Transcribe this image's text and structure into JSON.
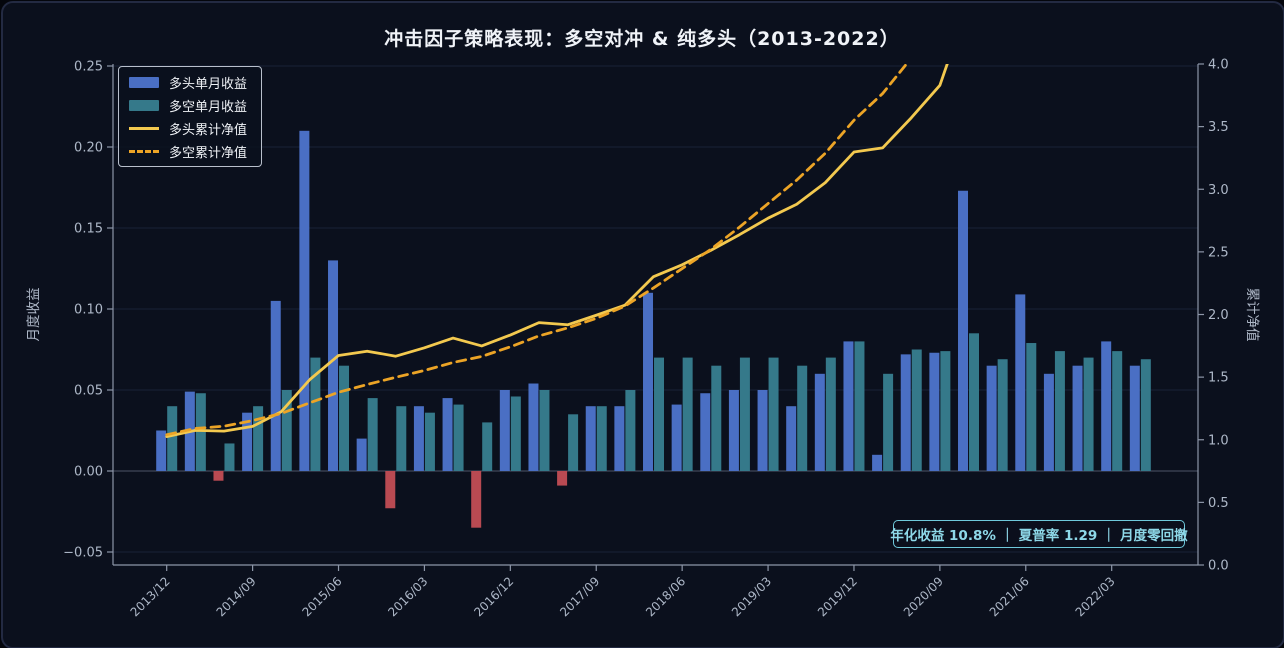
{
  "title": "冲击因子策略表现：多空对冲 & 纯多头（2013-2022）",
  "legend": {
    "items": [
      {
        "label": "多头单月收益",
        "swatch": "bar",
        "color": "#4a6fc4"
      },
      {
        "label": "多空单月收益",
        "swatch": "bar",
        "color": "#35798a"
      },
      {
        "label": "多头累计净值",
        "swatch": "line",
        "color": "#f3c94f"
      },
      {
        "label": "多空累计净值",
        "swatch": "dash",
        "color": "#eca426"
      }
    ]
  },
  "annotation": {
    "text": "年化收益 10.8% ｜ 夏普率 1.29 ｜ 月度零回撤",
    "stats": {
      "annualized_return": "10.8%",
      "sharpe_ratio": "1.29",
      "drawdown_note": "月度零回撤"
    }
  },
  "axes": {
    "left": {
      "label": "月度收益",
      "tick_labels": [
        "0.25",
        "0.20",
        "0.15",
        "0.10",
        "0.05",
        "0.00",
        "−0.05"
      ],
      "tick_values": [
        0.25,
        0.2,
        0.15,
        0.1,
        0.05,
        0.0,
        -0.05
      ]
    },
    "right": {
      "label": "累计净值",
      "tick_labels": [
        "4.0",
        "3.5",
        "3.0",
        "2.5",
        "2.0",
        "1.5",
        "1.0",
        "0.5",
        "0.0"
      ],
      "tick_values": [
        4.0,
        3.5,
        3.0,
        2.5,
        2.0,
        1.5,
        1.0,
        0.5,
        0.0
      ]
    },
    "x": {
      "shown_tick_indices": [
        0,
        3,
        6,
        9,
        12,
        15,
        18,
        21,
        24,
        27,
        30,
        33
      ]
    }
  },
  "colors": {
    "background": "#0b101d",
    "frame_border": "#232a42",
    "grid": "#1a2236",
    "zero_line": "#4d5568",
    "spine": "#8d96a8",
    "tick_text": "#aeb8c8",
    "title_text": "#f0f3f8",
    "bar_long": "#4a6fc4",
    "bar_short": "#35798a",
    "bar_negative": "#b94a52",
    "line_cum_long": "#f3c94f",
    "line_cum_short": "#eca426",
    "annotation_accent": "#6fc9db"
  },
  "chart_data": {
    "type": "bar",
    "subtype": "grouped-bars-with-dual-axis-lines",
    "title": "冲击因子策略表现：多空对冲 & 纯多头（2013-2022）",
    "xlabel": "",
    "ylabel_left": "月度收益",
    "ylabel_right": "累计净值",
    "ylim_left": [
      -0.058,
      0.2512
    ],
    "ylim_right": [
      0,
      4.0
    ],
    "grid": "horizontal-subtle",
    "legend_position": "upper-left",
    "categories": [
      "2013/12",
      "2014/03",
      "2014/06",
      "2014/09",
      "2014/12",
      "2015/03",
      "2015/06",
      "2015/09",
      "2015/12",
      "2016/03",
      "2016/06",
      "2016/09",
      "2016/12",
      "2017/03",
      "2017/06",
      "2017/09",
      "2017/12",
      "2018/03",
      "2018/06",
      "2018/09",
      "2018/12",
      "2019/03",
      "2019/06",
      "2019/09",
      "2019/12",
      "2020/03",
      "2020/06",
      "2020/09",
      "2020/12",
      "2021/03",
      "2021/06",
      "2021/09",
      "2021/12",
      "2022/03",
      "2022/06"
    ],
    "series": [
      {
        "name": "多头单月收益",
        "type": "bar",
        "axis": "left",
        "values": [
          0.025,
          0.049,
          -0.006,
          0.036,
          0.105,
          0.21,
          0.13,
          0.02,
          -0.023,
          0.04,
          0.045,
          -0.035,
          0.05,
          0.054,
          -0.009,
          0.04,
          0.04,
          0.11,
          0.041,
          0.048,
          0.05,
          0.05,
          0.04,
          0.06,
          0.08,
          0.01,
          0.072,
          0.073,
          0.173,
          0.065,
          0.109,
          0.06,
          0.065,
          0.08,
          0.065
        ],
        "note": "negative values drawn in red"
      },
      {
        "name": "多空单月收益",
        "type": "bar",
        "axis": "left",
        "values": [
          0.04,
          0.048,
          0.017,
          0.04,
          0.05,
          0.07,
          0.065,
          0.045,
          0.04,
          0.036,
          0.041,
          0.03,
          0.046,
          0.05,
          0.035,
          0.04,
          0.05,
          0.07,
          0.07,
          0.065,
          0.07,
          0.07,
          0.065,
          0.07,
          0.08,
          0.06,
          0.075,
          0.074,
          0.085,
          0.069,
          0.079,
          0.074,
          0.07,
          0.074,
          0.069
        ]
      },
      {
        "name": "多头累计净值",
        "type": "line",
        "style": "solid",
        "axis": "right",
        "values": [
          1.025,
          1.075,
          1.069,
          1.107,
          1.224,
          1.481,
          1.673,
          1.707,
          1.667,
          1.734,
          1.812,
          1.749,
          1.836,
          1.935,
          1.918,
          1.994,
          2.074,
          2.302,
          2.397,
          2.512,
          2.637,
          2.769,
          2.88,
          3.053,
          3.297,
          3.33,
          3.57,
          3.83,
          4.493,
          4.785,
          5.306,
          5.625,
          5.99,
          6.47,
          6.89
        ],
        "note": "clipped at top of axes (4.0)"
      },
      {
        "name": "多空累计净值",
        "type": "line",
        "style": "dashed",
        "axis": "right",
        "values": [
          1.04,
          1.09,
          1.108,
          1.153,
          1.21,
          1.295,
          1.379,
          1.441,
          1.499,
          1.553,
          1.617,
          1.665,
          1.742,
          1.829,
          1.893,
          1.969,
          2.067,
          2.212,
          2.367,
          2.52,
          2.697,
          2.886,
          3.073,
          3.288,
          3.551,
          3.764,
          4.047,
          4.346,
          4.716,
          5.041,
          5.439,
          5.842,
          6.251,
          6.713,
          7.176
        ],
        "note": "clipped at top of axes (4.0)"
      }
    ]
  }
}
